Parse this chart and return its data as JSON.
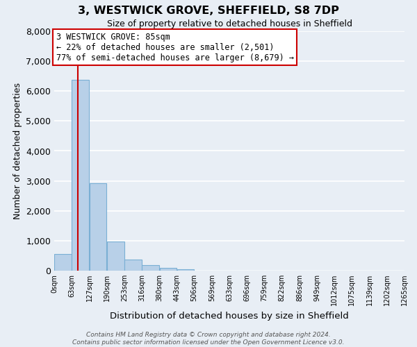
{
  "title": "3, WESTWICK GROVE, SHEFFIELD, S8 7DP",
  "subtitle": "Size of property relative to detached houses in Sheffield",
  "xlabel": "Distribution of detached houses by size in Sheffield",
  "ylabel": "Number of detached properties",
  "bar_color": "#b8d0e8",
  "bar_edge_color": "#7aafd4",
  "background_color": "#e8eef5",
  "plot_bg_color": "#e8eef5",
  "grid_color": "#ffffff",
  "bin_edges": [
    0,
    63,
    127,
    190,
    253,
    316,
    380,
    443,
    506,
    569,
    633,
    696,
    759,
    822,
    886,
    949,
    1012,
    1075,
    1139,
    1202,
    1265
  ],
  "bin_labels": [
    "0sqm",
    "63sqm",
    "127sqm",
    "190sqm",
    "253sqm",
    "316sqm",
    "380sqm",
    "443sqm",
    "506sqm",
    "569sqm",
    "633sqm",
    "696sqm",
    "759sqm",
    "822sqm",
    "886sqm",
    "949sqm",
    "1012sqm",
    "1075sqm",
    "1139sqm",
    "1202sqm",
    "1265sqm"
  ],
  "counts": [
    560,
    6380,
    2920,
    970,
    360,
    175,
    100,
    55,
    0,
    0,
    0,
    0,
    0,
    0,
    0,
    0,
    0,
    0,
    0,
    0
  ],
  "ylim": [
    0,
    8000
  ],
  "yticks": [
    0,
    1000,
    2000,
    3000,
    4000,
    5000,
    6000,
    7000,
    8000
  ],
  "vline_x": 85,
  "vline_color": "#cc0000",
  "annotation_line1": "3 WESTWICK GROVE: 85sqm",
  "annotation_line2": "← 22% of detached houses are smaller (2,501)",
  "annotation_line3": "77% of semi-detached houses are larger (8,679) →",
  "annotation_box_color": "#ffffff",
  "annotation_box_edge_color": "#cc0000",
  "footer_line1": "Contains HM Land Registry data © Crown copyright and database right 2024.",
  "footer_line2": "Contains public sector information licensed under the Open Government Licence v3.0."
}
